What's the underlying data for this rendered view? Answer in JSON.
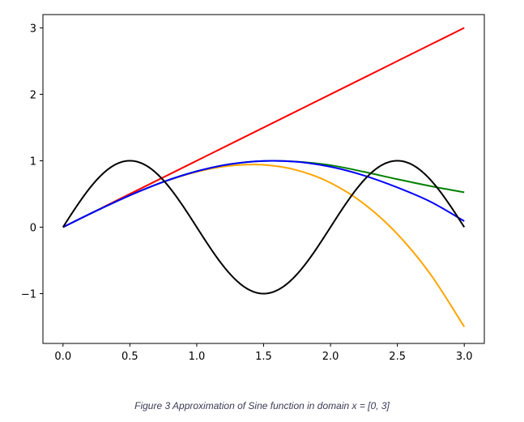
{
  "caption": "Figure 3 Approximation of Sine function in domain x = [0, 3]",
  "chart_data": {
    "type": "line",
    "title": "",
    "xlabel": "",
    "ylabel": "",
    "xlim": [
      -0.15,
      3.15
    ],
    "ylim": [
      -1.75,
      3.2
    ],
    "xticks": [
      0.0,
      0.5,
      1.0,
      1.5,
      2.0,
      2.5,
      3.0
    ],
    "xtick_labels": [
      "0.0",
      "0.5",
      "1.0",
      "1.5",
      "2.0",
      "2.5",
      "3.0"
    ],
    "yticks": [
      -1,
      0,
      1,
      2,
      3
    ],
    "ytick_labels": [
      "−1",
      "0",
      "1",
      "2",
      "3"
    ],
    "grid": false,
    "legend": "none",
    "x": [
      0.0,
      0.25,
      0.5,
      0.75,
      1.0,
      1.25,
      1.5,
      1.75,
      2.0,
      2.25,
      2.5,
      2.75,
      3.0
    ],
    "series": [
      {
        "color": "#ff0000",
        "values": [
          0.0,
          0.25,
          0.5,
          0.75,
          1.0,
          1.25,
          1.5,
          1.75,
          2.0,
          2.25,
          2.5,
          2.75,
          3.0
        ]
      },
      {
        "color": "#ffa500",
        "values": [
          0.0,
          0.247,
          0.479,
          0.68,
          0.833,
          0.924,
          0.938,
          0.857,
          0.667,
          0.352,
          -0.104,
          -0.716,
          -1.5
        ]
      },
      {
        "color": "#008000",
        "values": [
          0.0,
          0.247,
          0.479,
          0.682,
          0.842,
          0.949,
          0.997,
          0.985,
          0.933,
          0.833,
          0.722,
          0.617,
          0.525
        ]
      },
      {
        "color": "#0000ff",
        "values": [
          0.0,
          0.247,
          0.479,
          0.682,
          0.841,
          0.949,
          0.997,
          0.984,
          0.909,
          0.778,
          0.598,
          0.381,
          0.091
        ]
      },
      {
        "color": "#000000",
        "func": "sin(pi*x)",
        "values": [
          0.0,
          0.707,
          1.0,
          0.707,
          0.0,
          -0.707,
          -1.0,
          -0.707,
          0.0,
          0.707,
          1.0,
          0.707,
          0.0
        ]
      }
    ]
  }
}
